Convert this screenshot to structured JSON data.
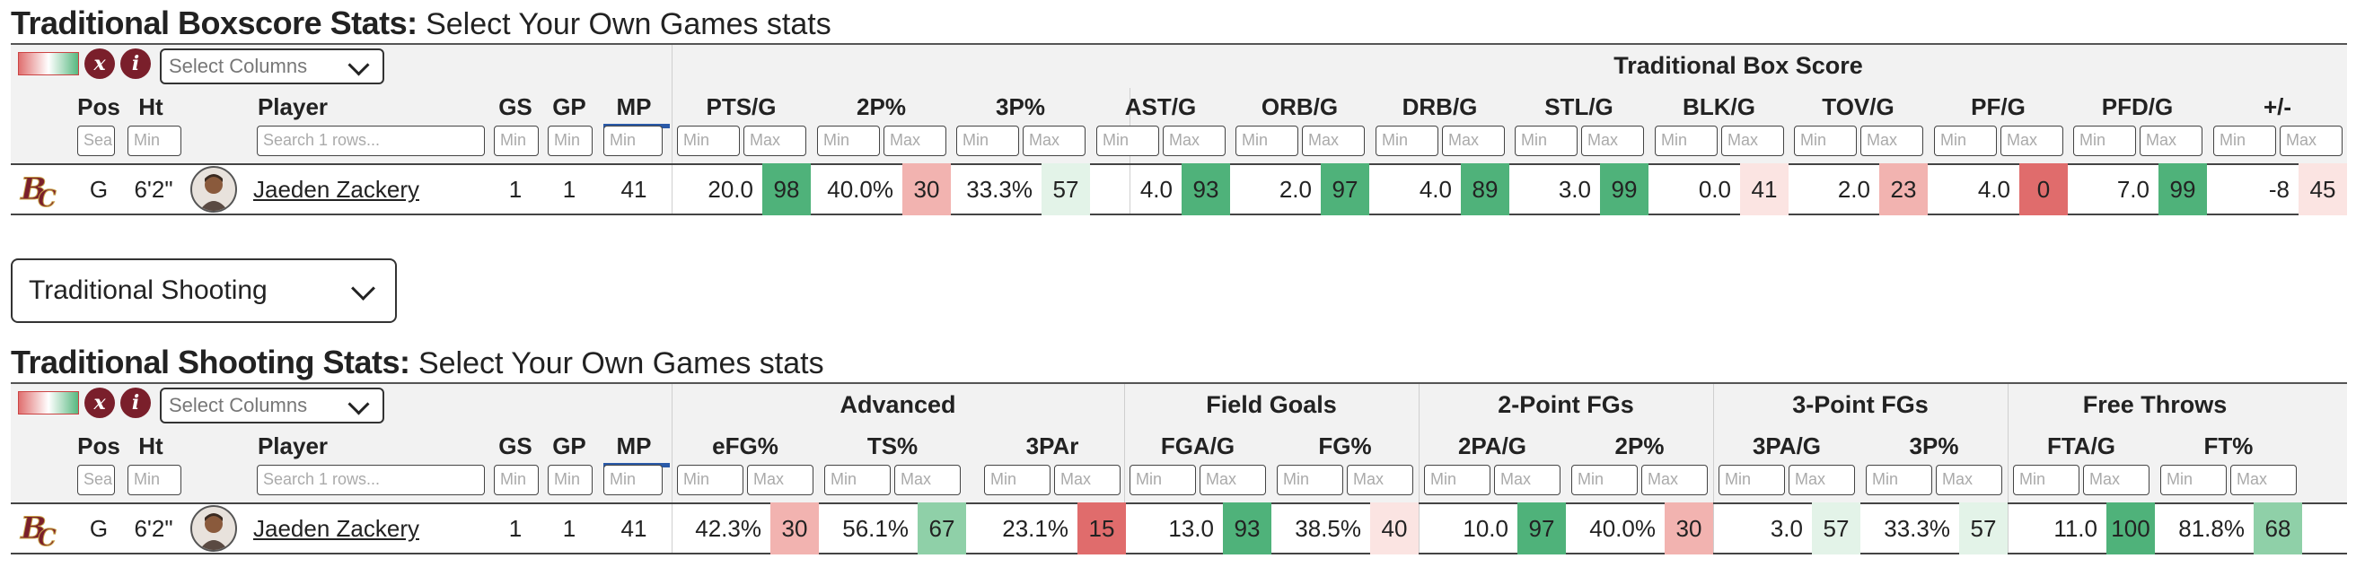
{
  "toolbar": {
    "reset_icon_label": "x",
    "info_icon_label": "i",
    "select_columns_placeholder": "Select Columns"
  },
  "filters": {
    "min": "Min",
    "max": "Max",
    "pos_placeholder": "Sea",
    "player_search_placeholder": "Search 1 rows..."
  },
  "common_headers": {
    "pos": "Pos",
    "ht": "Ht",
    "player": "Player",
    "gs": "GS",
    "gp": "GP",
    "mp": "MP"
  },
  "player": {
    "pos": "G",
    "ht": "6'2\"",
    "name": "Jaeden Zackery",
    "gs": "1",
    "gp": "1",
    "mp": "41"
  },
  "colors": {
    "green_strong": "#4fb27a",
    "green_mid": "#8fd0a8",
    "green_light": "#e3f3e8",
    "red_strong": "#e06c6c",
    "red_mid": "#f2b3b0",
    "red_light": "#fbe4e2",
    "team_logo": "#7a1f2b"
  },
  "table1": {
    "title_bold": "Traditional Boxscore Stats:",
    "title_rest": " Select Your Own Games stats",
    "group": "Traditional Box Score",
    "columns": [
      {
        "label": "PTS/G",
        "value": "20.0",
        "pct": "98"
      },
      {
        "label": "2P%",
        "value": "40.0%",
        "pct": "30"
      },
      {
        "label": "3P%",
        "value": "33.3%",
        "pct": "57"
      },
      {
        "label": "AST/G",
        "value": "4.0",
        "pct": "93"
      },
      {
        "label": "ORB/G",
        "value": "2.0",
        "pct": "97"
      },
      {
        "label": "DRB/G",
        "value": "4.0",
        "pct": "89"
      },
      {
        "label": "STL/G",
        "value": "3.0",
        "pct": "99"
      },
      {
        "label": "BLK/G",
        "value": "0.0",
        "pct": "41"
      },
      {
        "label": "TOV/G",
        "value": "2.0",
        "pct": "23"
      },
      {
        "label": "PF/G",
        "value": "4.0",
        "pct": "0"
      },
      {
        "label": "PFD/G",
        "value": "7.0",
        "pct": "99"
      },
      {
        "label": "+/-",
        "value": "-8",
        "pct": "45"
      }
    ]
  },
  "stat_selector": {
    "selected": "Traditional Shooting"
  },
  "table2": {
    "title_bold": "Traditional Shooting Stats:",
    "title_rest": " Select Your Own Games stats",
    "groups": [
      "Advanced",
      "Field Goals",
      "2-Point FGs",
      "3-Point FGs",
      "Free Throws"
    ],
    "columns": [
      {
        "label": "eFG%",
        "value": "42.3%",
        "pct": "30"
      },
      {
        "label": "TS%",
        "value": "56.1%",
        "pct": "67"
      },
      {
        "label": "3PAr",
        "value": "23.1%",
        "pct": "15"
      },
      {
        "label": "FGA/G",
        "value": "13.0",
        "pct": "93"
      },
      {
        "label": "FG%",
        "value": "38.5%",
        "pct": "40"
      },
      {
        "label": "2PA/G",
        "value": "10.0",
        "pct": "97"
      },
      {
        "label": "2P%",
        "value": "40.0%",
        "pct": "30"
      },
      {
        "label": "3PA/G",
        "value": "3.0",
        "pct": "57"
      },
      {
        "label": "3P%",
        "value": "33.3%",
        "pct": "57"
      },
      {
        "label": "FTA/G",
        "value": "11.0",
        "pct": "100"
      },
      {
        "label": "FT%",
        "value": "81.8%",
        "pct": "68"
      }
    ]
  }
}
